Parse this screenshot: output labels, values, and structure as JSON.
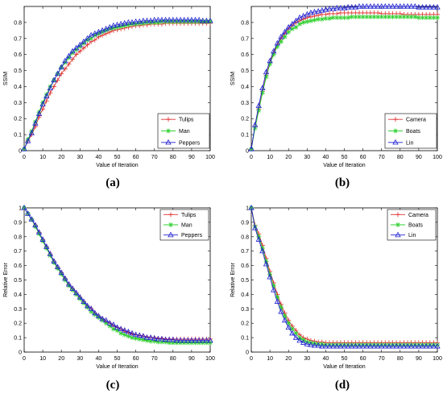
{
  "figure": {
    "panel_labels": [
      "(a)",
      "(b)",
      "(c)",
      "(d)"
    ]
  },
  "chart_data": [
    {
      "type": "line",
      "title": "",
      "xlabel": "Value of Iteration",
      "ylabel": "SSIM",
      "xlim": [
        0,
        100
      ],
      "ylim": [
        0,
        0.9
      ],
      "xticks": [
        0,
        10,
        20,
        30,
        40,
        50,
        60,
        70,
        80,
        90,
        100
      ],
      "yticks": [
        0,
        0.1,
        0.2,
        0.3,
        0.4,
        0.5,
        0.6,
        0.7,
        0.8
      ],
      "legend_position": "bottom-right",
      "x": [
        0,
        2,
        4,
        6,
        8,
        10,
        12,
        14,
        16,
        18,
        20,
        22,
        24,
        26,
        28,
        30,
        32,
        34,
        36,
        38,
        40,
        42,
        44,
        46,
        48,
        50,
        52,
        54,
        56,
        58,
        60,
        62,
        64,
        66,
        68,
        70,
        72,
        74,
        76,
        78,
        80,
        82,
        84,
        86,
        88,
        90,
        92,
        94,
        96,
        98,
        100
      ],
      "series": [
        {
          "name": "Tulips",
          "color": "#e03030",
          "marker": "plus",
          "values": [
            0.01,
            0.06,
            0.1,
            0.15,
            0.21,
            0.26,
            0.31,
            0.36,
            0.4,
            0.44,
            0.48,
            0.51,
            0.54,
            0.57,
            0.6,
            0.62,
            0.64,
            0.66,
            0.68,
            0.69,
            0.71,
            0.72,
            0.73,
            0.74,
            0.75,
            0.755,
            0.76,
            0.765,
            0.77,
            0.775,
            0.78,
            0.78,
            0.785,
            0.785,
            0.79,
            0.79,
            0.79,
            0.79,
            0.795,
            0.795,
            0.795,
            0.795,
            0.795,
            0.795,
            0.795,
            0.795,
            0.795,
            0.795,
            0.795,
            0.795,
            0.795
          ]
        },
        {
          "name": "Man",
          "color": "#30d030",
          "marker": "star",
          "values": [
            0.01,
            0.07,
            0.12,
            0.18,
            0.24,
            0.3,
            0.35,
            0.4,
            0.44,
            0.48,
            0.52,
            0.55,
            0.58,
            0.61,
            0.63,
            0.65,
            0.67,
            0.69,
            0.7,
            0.72,
            0.73,
            0.74,
            0.75,
            0.76,
            0.765,
            0.77,
            0.775,
            0.78,
            0.785,
            0.79,
            0.79,
            0.795,
            0.795,
            0.8,
            0.8,
            0.8,
            0.8,
            0.805,
            0.805,
            0.805,
            0.805,
            0.805,
            0.805,
            0.805,
            0.805,
            0.805,
            0.805,
            0.805,
            0.805,
            0.805,
            0.805
          ]
        },
        {
          "name": "Peppers",
          "color": "#2020d0",
          "marker": "triangle",
          "values": [
            0.01,
            0.06,
            0.11,
            0.17,
            0.23,
            0.29,
            0.34,
            0.39,
            0.44,
            0.48,
            0.52,
            0.56,
            0.59,
            0.62,
            0.64,
            0.66,
            0.68,
            0.7,
            0.72,
            0.73,
            0.74,
            0.75,
            0.76,
            0.77,
            0.78,
            0.785,
            0.79,
            0.795,
            0.8,
            0.8,
            0.805,
            0.805,
            0.81,
            0.81,
            0.81,
            0.815,
            0.815,
            0.815,
            0.815,
            0.815,
            0.815,
            0.815,
            0.815,
            0.815,
            0.815,
            0.815,
            0.815,
            0.815,
            0.81,
            0.81,
            0.81
          ]
        }
      ]
    },
    {
      "type": "line",
      "title": "",
      "xlabel": "Value of Iteration",
      "ylabel": "SSIM",
      "xlim": [
        0,
        100
      ],
      "ylim": [
        0,
        0.9
      ],
      "xticks": [
        0,
        10,
        20,
        30,
        40,
        50,
        60,
        70,
        80,
        90,
        100
      ],
      "yticks": [
        0,
        0.1,
        0.2,
        0.3,
        0.4,
        0.5,
        0.6,
        0.7,
        0.8
      ],
      "legend_position": "bottom-right",
      "x": [
        0,
        2,
        4,
        6,
        8,
        10,
        12,
        14,
        16,
        18,
        20,
        22,
        24,
        26,
        28,
        30,
        32,
        34,
        36,
        38,
        40,
        42,
        44,
        46,
        48,
        50,
        52,
        54,
        56,
        58,
        60,
        62,
        64,
        66,
        68,
        70,
        72,
        74,
        76,
        78,
        80,
        82,
        84,
        86,
        88,
        90,
        92,
        94,
        96,
        98,
        100
      ],
      "series": [
        {
          "name": "Camera",
          "color": "#e03030",
          "marker": "plus",
          "values": [
            0.01,
            0.15,
            0.26,
            0.37,
            0.47,
            0.55,
            0.61,
            0.66,
            0.7,
            0.73,
            0.76,
            0.78,
            0.8,
            0.81,
            0.82,
            0.83,
            0.835,
            0.84,
            0.845,
            0.85,
            0.85,
            0.855,
            0.855,
            0.855,
            0.86,
            0.86,
            0.86,
            0.86,
            0.86,
            0.86,
            0.86,
            0.86,
            0.86,
            0.86,
            0.86,
            0.855,
            0.855,
            0.855,
            0.855,
            0.855,
            0.855,
            0.85,
            0.85,
            0.85,
            0.85,
            0.85,
            0.85,
            0.85,
            0.85,
            0.85,
            0.85
          ]
        },
        {
          "name": "Boats",
          "color": "#30d030",
          "marker": "star",
          "values": [
            0.01,
            0.14,
            0.25,
            0.36,
            0.46,
            0.54,
            0.6,
            0.65,
            0.68,
            0.71,
            0.74,
            0.76,
            0.77,
            0.79,
            0.8,
            0.805,
            0.81,
            0.815,
            0.82,
            0.82,
            0.825,
            0.825,
            0.83,
            0.83,
            0.83,
            0.83,
            0.83,
            0.835,
            0.835,
            0.835,
            0.835,
            0.835,
            0.835,
            0.835,
            0.835,
            0.835,
            0.835,
            0.835,
            0.835,
            0.835,
            0.835,
            0.835,
            0.835,
            0.835,
            0.835,
            0.83,
            0.83,
            0.83,
            0.83,
            0.83,
            0.83
          ]
        },
        {
          "name": "Lin",
          "color": "#2020d0",
          "marker": "triangle",
          "values": [
            0.01,
            0.16,
            0.28,
            0.39,
            0.49,
            0.56,
            0.62,
            0.67,
            0.71,
            0.74,
            0.77,
            0.79,
            0.81,
            0.83,
            0.84,
            0.85,
            0.86,
            0.865,
            0.87,
            0.875,
            0.88,
            0.885,
            0.885,
            0.89,
            0.89,
            0.89,
            0.895,
            0.895,
            0.895,
            0.9,
            0.9,
            0.9,
            0.9,
            0.9,
            0.9,
            0.9,
            0.9,
            0.9,
            0.9,
            0.9,
            0.9,
            0.9,
            0.9,
            0.9,
            0.9,
            0.895,
            0.895,
            0.895,
            0.895,
            0.895,
            0.895
          ]
        }
      ]
    },
    {
      "type": "line",
      "title": "",
      "xlabel": "Value of Iteration",
      "ylabel": "Relative Error",
      "xlim": [
        0,
        100
      ],
      "ylim": [
        0,
        1
      ],
      "xticks": [
        0,
        10,
        20,
        30,
        40,
        50,
        60,
        70,
        80,
        90,
        100
      ],
      "yticks": [
        0,
        0.1,
        0.2,
        0.3,
        0.4,
        0.5,
        0.6,
        0.7,
        0.8,
        0.9,
        1
      ],
      "legend_position": "top-right",
      "x": [
        0,
        2,
        4,
        6,
        8,
        10,
        12,
        14,
        16,
        18,
        20,
        22,
        24,
        26,
        28,
        30,
        32,
        34,
        36,
        38,
        40,
        42,
        44,
        46,
        48,
        50,
        52,
        54,
        56,
        58,
        60,
        62,
        64,
        66,
        68,
        70,
        72,
        74,
        76,
        78,
        80,
        82,
        84,
        86,
        88,
        90,
        92,
        94,
        96,
        98,
        100
      ],
      "series": [
        {
          "name": "Tulips",
          "color": "#e03030",
          "marker": "plus",
          "values": [
            1,
            0.96,
            0.92,
            0.88,
            0.83,
            0.78,
            0.73,
            0.68,
            0.63,
            0.59,
            0.55,
            0.51,
            0.47,
            0.44,
            0.41,
            0.38,
            0.35,
            0.32,
            0.3,
            0.27,
            0.25,
            0.23,
            0.21,
            0.2,
            0.18,
            0.17,
            0.16,
            0.145,
            0.135,
            0.125,
            0.12,
            0.115,
            0.11,
            0.105,
            0.1,
            0.1,
            0.095,
            0.095,
            0.09,
            0.09,
            0.09,
            0.09,
            0.09,
            0.09,
            0.09,
            0.09,
            0.09,
            0.09,
            0.09,
            0.09,
            0.09
          ]
        },
        {
          "name": "Man",
          "color": "#30d030",
          "marker": "star",
          "values": [
            1,
            0.96,
            0.92,
            0.87,
            0.82,
            0.77,
            0.72,
            0.67,
            0.62,
            0.58,
            0.54,
            0.5,
            0.46,
            0.43,
            0.4,
            0.37,
            0.34,
            0.31,
            0.28,
            0.26,
            0.24,
            0.22,
            0.2,
            0.18,
            0.16,
            0.15,
            0.13,
            0.12,
            0.11,
            0.1,
            0.095,
            0.09,
            0.085,
            0.08,
            0.075,
            0.075,
            0.07,
            0.07,
            0.07,
            0.065,
            0.065,
            0.065,
            0.065,
            0.065,
            0.065,
            0.065,
            0.065,
            0.065,
            0.065,
            0.065,
            0.065
          ]
        },
        {
          "name": "Peppers",
          "color": "#2020d0",
          "marker": "triangle",
          "values": [
            1,
            0.96,
            0.92,
            0.88,
            0.83,
            0.78,
            0.73,
            0.68,
            0.63,
            0.59,
            0.55,
            0.51,
            0.47,
            0.44,
            0.41,
            0.38,
            0.35,
            0.32,
            0.3,
            0.27,
            0.25,
            0.23,
            0.22,
            0.2,
            0.19,
            0.17,
            0.16,
            0.15,
            0.14,
            0.13,
            0.12,
            0.115,
            0.11,
            0.1,
            0.1,
            0.095,
            0.09,
            0.09,
            0.085,
            0.085,
            0.085,
            0.08,
            0.08,
            0.08,
            0.08,
            0.08,
            0.08,
            0.08,
            0.08,
            0.08,
            0.08
          ]
        }
      ]
    },
    {
      "type": "line",
      "title": "",
      "xlabel": "Value of Iteration",
      "ylabel": "Relative Error",
      "xlim": [
        0,
        100
      ],
      "ylim": [
        0,
        1
      ],
      "xticks": [
        0,
        10,
        20,
        30,
        40,
        50,
        60,
        70,
        80,
        90,
        100
      ],
      "yticks": [
        0,
        0.1,
        0.2,
        0.3,
        0.4,
        0.5,
        0.6,
        0.7,
        0.8,
        0.9,
        1
      ],
      "legend_position": "top-right",
      "x": [
        0,
        2,
        4,
        6,
        8,
        10,
        12,
        14,
        16,
        18,
        20,
        22,
        24,
        26,
        28,
        30,
        32,
        34,
        36,
        38,
        40,
        42,
        44,
        46,
        48,
        50,
        52,
        54,
        56,
        58,
        60,
        62,
        64,
        66,
        68,
        70,
        72,
        74,
        76,
        78,
        80,
        82,
        84,
        86,
        88,
        90,
        92,
        94,
        96,
        98,
        100
      ],
      "series": [
        {
          "name": "Camera",
          "color": "#e03030",
          "marker": "plus",
          "values": [
            1,
            0.88,
            0.82,
            0.74,
            0.65,
            0.56,
            0.48,
            0.4,
            0.33,
            0.27,
            0.22,
            0.18,
            0.15,
            0.12,
            0.1,
            0.09,
            0.08,
            0.075,
            0.07,
            0.07,
            0.065,
            0.065,
            0.065,
            0.065,
            0.065,
            0.065,
            0.065,
            0.065,
            0.065,
            0.065,
            0.065,
            0.065,
            0.065,
            0.065,
            0.065,
            0.065,
            0.065,
            0.065,
            0.065,
            0.065,
            0.065,
            0.065,
            0.065,
            0.065,
            0.065,
            0.065,
            0.065,
            0.065,
            0.065,
            0.065,
            0.065
          ]
        },
        {
          "name": "Boats",
          "color": "#30d030",
          "marker": "star",
          "values": [
            1,
            0.87,
            0.8,
            0.72,
            0.63,
            0.54,
            0.46,
            0.38,
            0.31,
            0.25,
            0.2,
            0.16,
            0.13,
            0.1,
            0.085,
            0.07,
            0.065,
            0.06,
            0.055,
            0.055,
            0.05,
            0.05,
            0.05,
            0.05,
            0.05,
            0.05,
            0.05,
            0.05,
            0.05,
            0.05,
            0.05,
            0.05,
            0.05,
            0.05,
            0.05,
            0.05,
            0.05,
            0.05,
            0.05,
            0.05,
            0.05,
            0.05,
            0.05,
            0.05,
            0.05,
            0.05,
            0.05,
            0.05,
            0.05,
            0.05,
            0.05
          ]
        },
        {
          "name": "Lin",
          "color": "#2020d0",
          "marker": "triangle",
          "values": [
            1,
            0.86,
            0.78,
            0.7,
            0.61,
            0.52,
            0.43,
            0.35,
            0.28,
            0.22,
            0.17,
            0.13,
            0.1,
            0.08,
            0.065,
            0.055,
            0.05,
            0.045,
            0.045,
            0.04,
            0.04,
            0.04,
            0.04,
            0.04,
            0.04,
            0.04,
            0.04,
            0.04,
            0.04,
            0.04,
            0.04,
            0.04,
            0.04,
            0.04,
            0.04,
            0.04,
            0.04,
            0.04,
            0.04,
            0.04,
            0.04,
            0.04,
            0.04,
            0.04,
            0.04,
            0.04,
            0.04,
            0.04,
            0.04,
            0.04,
            0.04
          ]
        }
      ]
    }
  ]
}
